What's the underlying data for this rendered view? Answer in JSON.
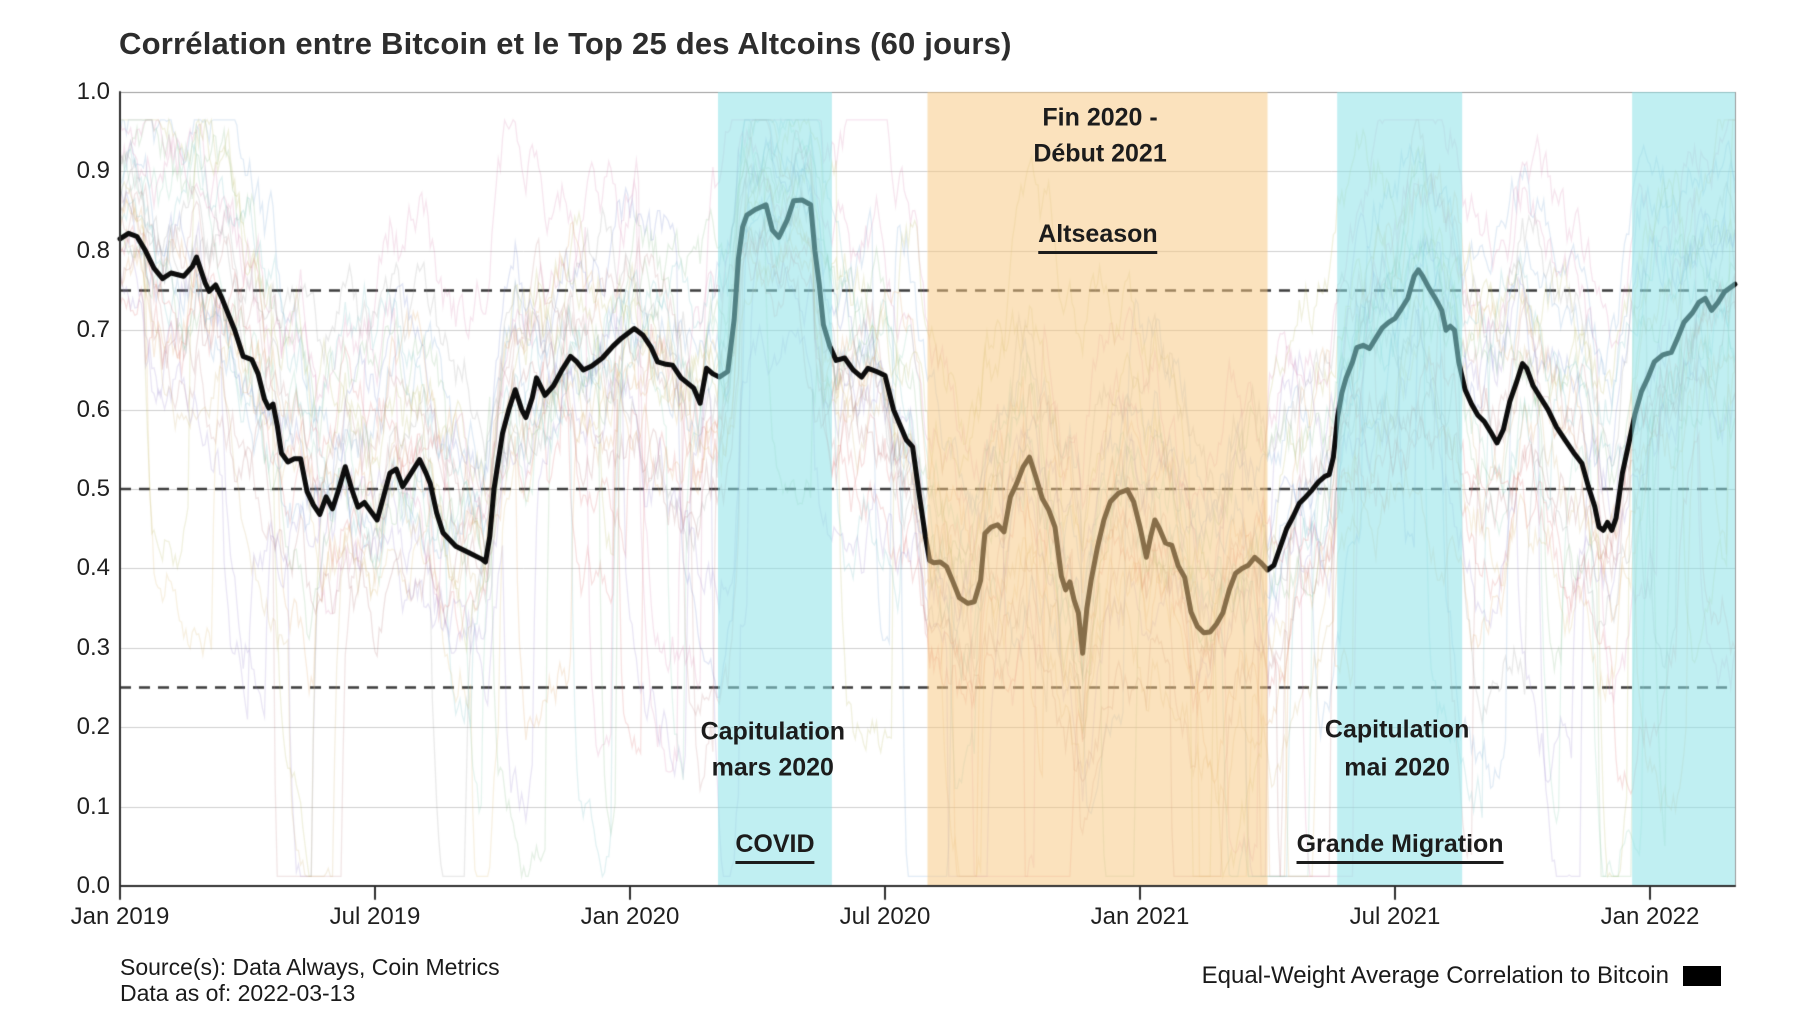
{
  "title": "Corrélation entre Bitcoin et le Top 25 des Altcoins (60 jours)",
  "source": {
    "line1": "Source(s): Data Always, Coin Metrics",
    "line2": "Data as of: 2022-03-13"
  },
  "legend": {
    "label": "Equal-Weight Average Correlation to Bitcoin",
    "swatch_color": "#000000"
  },
  "y_axis": {
    "tick_labels": [
      "1.0",
      "0.9",
      "0.8",
      "0.7",
      "0.6",
      "0.5",
      "0.4",
      "0.3",
      "0.2",
      "0.1",
      "0.0"
    ],
    "tick_values": [
      1.0,
      0.9,
      0.8,
      0.7,
      0.6,
      0.5,
      0.4,
      0.3,
      0.2,
      0.1,
      0.0
    ]
  },
  "x_axis": {
    "ticks": [
      {
        "label": "Jan 2019",
        "month": 0
      },
      {
        "label": "Jul 2019",
        "month": 6
      },
      {
        "label": "Jan 2020",
        "month": 12
      },
      {
        "label": "Jul 2020",
        "month": 18
      },
      {
        "label": "Jan 2021",
        "month": 24
      },
      {
        "label": "Jul 2021",
        "month": 30
      },
      {
        "label": "Jan 2022",
        "month": 36
      }
    ]
  },
  "annotations": [
    {
      "id": "altseason-period-line1",
      "text": "Fin 2020 -",
      "month": 23.06,
      "value": 0.967,
      "underline": false
    },
    {
      "id": "altseason-period-line2",
      "text": "Début 2021",
      "month": 23.06,
      "value": 0.922,
      "underline": false
    },
    {
      "id": "altseason-label",
      "text": "Altseason",
      "month": 23.01,
      "value": 0.817,
      "underline": true
    },
    {
      "id": "capitulation-mars-line1",
      "text": "Capitulation",
      "month": 15.36,
      "value": 0.194,
      "underline": false
    },
    {
      "id": "capitulation-mars-line2",
      "text": "mars 2020",
      "month": 15.36,
      "value": 0.149,
      "underline": false
    },
    {
      "id": "covid-label",
      "text": "COVID",
      "month": 15.41,
      "value": 0.049,
      "underline": true
    },
    {
      "id": "capitulation-mai-line1",
      "text": "Capitulation",
      "month": 30.05,
      "value": 0.196,
      "underline": false
    },
    {
      "id": "capitulation-mai-line2",
      "text": "mai 2020",
      "month": 30.05,
      "value": 0.149,
      "underline": false
    },
    {
      "id": "grande-migration-label",
      "text": "Grande Migration",
      "month": 30.12,
      "value": 0.049,
      "underline": true
    }
  ],
  "colors": {
    "band_cyan": "rgba(140,225,231,0.55)",
    "band_orange": "rgba(247,199,129,0.52)",
    "main_line": "#0d0d0d",
    "dashed_line": "#3c3c3c",
    "gridline": "#cfcfcf",
    "plot_border": "#9a9a9a",
    "axis_line": "#2e2e2e"
  },
  "chart_data": {
    "type": "line",
    "title": "Corrélation entre Bitcoin et le Top 25 des Altcoins (60 jours)",
    "xlabel": "",
    "ylabel": "",
    "x_unit": "months since Jan 2019",
    "x_domain": [
      0,
      38
    ],
    "x_domain_dates": [
      "2019-01",
      "2022-03"
    ],
    "ylim": [
      0.0,
      1.0
    ],
    "grid": "horizontal-0.1-steps",
    "legend_position": "bottom-right",
    "dashed_reference_levels": [
      0.25,
      0.5,
      0.75
    ],
    "bands": [
      {
        "name": "covid-capitulation",
        "start_month": 14.07,
        "end_month": 16.75,
        "color_key": "band_cyan"
      },
      {
        "name": "altseason",
        "start_month": 19.0,
        "end_month": 27.0,
        "color_key": "band_orange"
      },
      {
        "name": "grande-migration",
        "start_month": 28.64,
        "end_month": 31.58,
        "color_key": "band_cyan"
      },
      {
        "name": "late-2021-rebound",
        "start_month": 35.58,
        "end_month": 38.0,
        "color_key": "band_cyan"
      }
    ],
    "main_series": {
      "name": "Equal-Weight Average Correlation to Bitcoin",
      "points": [
        [
          0,
          0.815
        ],
        [
          0.2,
          0.822
        ],
        [
          0.4,
          0.818
        ],
        [
          0.6,
          0.8
        ],
        [
          0.8,
          0.778
        ],
        [
          1.0,
          0.765
        ],
        [
          1.2,
          0.772
        ],
        [
          1.5,
          0.768
        ],
        [
          1.7,
          0.78
        ],
        [
          1.8,
          0.792
        ],
        [
          2.0,
          0.76
        ],
        [
          2.1,
          0.749
        ],
        [
          2.25,
          0.757
        ],
        [
          2.4,
          0.74
        ],
        [
          2.55,
          0.72
        ],
        [
          2.7,
          0.7
        ],
        [
          2.9,
          0.667
        ],
        [
          3.1,
          0.663
        ],
        [
          3.25,
          0.645
        ],
        [
          3.4,
          0.613
        ],
        [
          3.5,
          0.602
        ],
        [
          3.6,
          0.607
        ],
        [
          3.7,
          0.58
        ],
        [
          3.8,
          0.545
        ],
        [
          3.95,
          0.534
        ],
        [
          4.1,
          0.538
        ],
        [
          4.25,
          0.538
        ],
        [
          4.4,
          0.497
        ],
        [
          4.55,
          0.48
        ],
        [
          4.7,
          0.468
        ],
        [
          4.85,
          0.49
        ],
        [
          5.0,
          0.475
        ],
        [
          5.15,
          0.5
        ],
        [
          5.3,
          0.528
        ],
        [
          5.45,
          0.5
        ],
        [
          5.6,
          0.477
        ],
        [
          5.75,
          0.483
        ],
        [
          5.9,
          0.472
        ],
        [
          6.05,
          0.461
        ],
        [
          6.2,
          0.49
        ],
        [
          6.35,
          0.52
        ],
        [
          6.5,
          0.525
        ],
        [
          6.65,
          0.503
        ],
        [
          6.85,
          0.52
        ],
        [
          7.05,
          0.537
        ],
        [
          7.2,
          0.52
        ],
        [
          7.3,
          0.507
        ],
        [
          7.45,
          0.47
        ],
        [
          7.6,
          0.445
        ],
        [
          7.9,
          0.428
        ],
        [
          8.2,
          0.42
        ],
        [
          8.5,
          0.412
        ],
        [
          8.6,
          0.408
        ],
        [
          8.7,
          0.44
        ],
        [
          8.8,
          0.5
        ],
        [
          9.0,
          0.57
        ],
        [
          9.15,
          0.6
        ],
        [
          9.3,
          0.625
        ],
        [
          9.45,
          0.6
        ],
        [
          9.55,
          0.59
        ],
        [
          9.7,
          0.615
        ],
        [
          9.8,
          0.64
        ],
        [
          10.0,
          0.618
        ],
        [
          10.2,
          0.63
        ],
        [
          10.4,
          0.65
        ],
        [
          10.6,
          0.667
        ],
        [
          10.75,
          0.66
        ],
        [
          10.9,
          0.65
        ],
        [
          11.1,
          0.655
        ],
        [
          11.35,
          0.665
        ],
        [
          11.6,
          0.68
        ],
        [
          11.8,
          0.69
        ],
        [
          12.1,
          0.702
        ],
        [
          12.3,
          0.694
        ],
        [
          12.5,
          0.678
        ],
        [
          12.65,
          0.66
        ],
        [
          12.85,
          0.657
        ],
        [
          13.0,
          0.656
        ],
        [
          13.2,
          0.64
        ],
        [
          13.5,
          0.627
        ],
        [
          13.65,
          0.608
        ],
        [
          13.8,
          0.652
        ],
        [
          13.95,
          0.645
        ],
        [
          14.1,
          0.641
        ],
        [
          14.3,
          0.648
        ],
        [
          14.45,
          0.713
        ],
        [
          14.55,
          0.79
        ],
        [
          14.65,
          0.83
        ],
        [
          14.75,
          0.845
        ],
        [
          14.95,
          0.852
        ],
        [
          15.2,
          0.858
        ],
        [
          15.35,
          0.826
        ],
        [
          15.5,
          0.817
        ],
        [
          15.7,
          0.839
        ],
        [
          15.85,
          0.863
        ],
        [
          16.05,
          0.864
        ],
        [
          16.25,
          0.858
        ],
        [
          16.35,
          0.8
        ],
        [
          16.45,
          0.759
        ],
        [
          16.55,
          0.707
        ],
        [
          16.7,
          0.68
        ],
        [
          16.85,
          0.662
        ],
        [
          17.05,
          0.665
        ],
        [
          17.25,
          0.65
        ],
        [
          17.45,
          0.641
        ],
        [
          17.6,
          0.652
        ],
        [
          17.8,
          0.648
        ],
        [
          18.0,
          0.643
        ],
        [
          18.2,
          0.6
        ],
        [
          18.35,
          0.581
        ],
        [
          18.5,
          0.562
        ],
        [
          18.65,
          0.553
        ],
        [
          18.8,
          0.495
        ],
        [
          18.95,
          0.44
        ],
        [
          19.05,
          0.41
        ],
        [
          19.15,
          0.407
        ],
        [
          19.3,
          0.408
        ],
        [
          19.45,
          0.402
        ],
        [
          19.6,
          0.383
        ],
        [
          19.75,
          0.363
        ],
        [
          19.95,
          0.356
        ],
        [
          20.1,
          0.358
        ],
        [
          20.25,
          0.385
        ],
        [
          20.35,
          0.444
        ],
        [
          20.5,
          0.452
        ],
        [
          20.65,
          0.455
        ],
        [
          20.8,
          0.446
        ],
        [
          20.95,
          0.49
        ],
        [
          21.1,
          0.507
        ],
        [
          21.25,
          0.528
        ],
        [
          21.4,
          0.54
        ],
        [
          21.55,
          0.515
        ],
        [
          21.7,
          0.488
        ],
        [
          21.85,
          0.474
        ],
        [
          22.0,
          0.452
        ],
        [
          22.15,
          0.39
        ],
        [
          22.25,
          0.373
        ],
        [
          22.35,
          0.383
        ],
        [
          22.45,
          0.36
        ],
        [
          22.55,
          0.344
        ],
        [
          22.65,
          0.293
        ],
        [
          22.75,
          0.35
        ],
        [
          22.85,
          0.385
        ],
        [
          23.0,
          0.427
        ],
        [
          23.15,
          0.461
        ],
        [
          23.3,
          0.484
        ],
        [
          23.5,
          0.495
        ],
        [
          23.7,
          0.499
        ],
        [
          23.85,
          0.484
        ],
        [
          24.0,
          0.452
        ],
        [
          24.15,
          0.414
        ],
        [
          24.25,
          0.44
        ],
        [
          24.35,
          0.461
        ],
        [
          24.45,
          0.451
        ],
        [
          24.6,
          0.432
        ],
        [
          24.75,
          0.429
        ],
        [
          24.9,
          0.403
        ],
        [
          25.05,
          0.389
        ],
        [
          25.2,
          0.345
        ],
        [
          25.35,
          0.327
        ],
        [
          25.5,
          0.319
        ],
        [
          25.65,
          0.32
        ],
        [
          25.8,
          0.33
        ],
        [
          25.95,
          0.344
        ],
        [
          26.1,
          0.373
        ],
        [
          26.25,
          0.394
        ],
        [
          26.4,
          0.4
        ],
        [
          26.55,
          0.404
        ],
        [
          26.7,
          0.414
        ],
        [
          26.85,
          0.407
        ],
        [
          27.0,
          0.398
        ],
        [
          27.15,
          0.404
        ],
        [
          27.3,
          0.427
        ],
        [
          27.45,
          0.45
        ],
        [
          27.6,
          0.465
        ],
        [
          27.75,
          0.482
        ],
        [
          27.9,
          0.49
        ],
        [
          28.05,
          0.499
        ],
        [
          28.2,
          0.509
        ],
        [
          28.35,
          0.516
        ],
        [
          28.45,
          0.518
        ],
        [
          28.55,
          0.54
        ],
        [
          28.65,
          0.591
        ],
        [
          28.75,
          0.621
        ],
        [
          28.85,
          0.64
        ],
        [
          29.0,
          0.66
        ],
        [
          29.1,
          0.678
        ],
        [
          29.25,
          0.681
        ],
        [
          29.4,
          0.677
        ],
        [
          29.55,
          0.69
        ],
        [
          29.7,
          0.703
        ],
        [
          29.85,
          0.71
        ],
        [
          30.0,
          0.715
        ],
        [
          30.15,
          0.727
        ],
        [
          30.3,
          0.74
        ],
        [
          30.45,
          0.768
        ],
        [
          30.55,
          0.776
        ],
        [
          30.65,
          0.768
        ],
        [
          30.8,
          0.753
        ],
        [
          30.95,
          0.74
        ],
        [
          31.1,
          0.725
        ],
        [
          31.2,
          0.7
        ],
        [
          31.3,
          0.705
        ],
        [
          31.4,
          0.7
        ],
        [
          31.5,
          0.66
        ],
        [
          31.65,
          0.625
        ],
        [
          31.8,
          0.607
        ],
        [
          31.95,
          0.593
        ],
        [
          32.1,
          0.585
        ],
        [
          32.25,
          0.572
        ],
        [
          32.4,
          0.558
        ],
        [
          32.55,
          0.575
        ],
        [
          32.7,
          0.61
        ],
        [
          32.85,
          0.633
        ],
        [
          33.0,
          0.658
        ],
        [
          33.1,
          0.652
        ],
        [
          33.25,
          0.63
        ],
        [
          33.4,
          0.617
        ],
        [
          33.6,
          0.6
        ],
        [
          33.8,
          0.578
        ],
        [
          34.0,
          0.562
        ],
        [
          34.2,
          0.546
        ],
        [
          34.4,
          0.532
        ],
        [
          34.55,
          0.503
        ],
        [
          34.7,
          0.478
        ],
        [
          34.8,
          0.452
        ],
        [
          34.9,
          0.448
        ],
        [
          35.0,
          0.458
        ],
        [
          35.1,
          0.448
        ],
        [
          35.2,
          0.463
        ],
        [
          35.35,
          0.52
        ],
        [
          35.5,
          0.557
        ],
        [
          35.65,
          0.595
        ],
        [
          35.8,
          0.623
        ],
        [
          35.95,
          0.64
        ],
        [
          36.1,
          0.66
        ],
        [
          36.3,
          0.669
        ],
        [
          36.5,
          0.672
        ],
        [
          36.65,
          0.69
        ],
        [
          36.8,
          0.71
        ],
        [
          37.0,
          0.722
        ],
        [
          37.15,
          0.735
        ],
        [
          37.3,
          0.74
        ],
        [
          37.45,
          0.725
        ],
        [
          37.6,
          0.735
        ],
        [
          37.75,
          0.748
        ],
        [
          37.9,
          0.754
        ],
        [
          38.0,
          0.758
        ]
      ]
    },
    "background_series": {
      "description": "25 faint individual altcoin 60-day correlation traces (decorative cloud around the average)",
      "count": 25,
      "seed": 7,
      "opacity": 0.22,
      "palette": [
        "#e07a7a",
        "#7aa7d6",
        "#8fc08f",
        "#e0a96d",
        "#9f8fd0",
        "#c58f8f",
        "#d98fb8",
        "#a0a0a0",
        "#bdbd6e",
        "#7ac2c8",
        "#e0c07a",
        "#8fd0b8",
        "#b87a7a",
        "#7a8fd0",
        "#d0b87a"
      ]
    }
  }
}
